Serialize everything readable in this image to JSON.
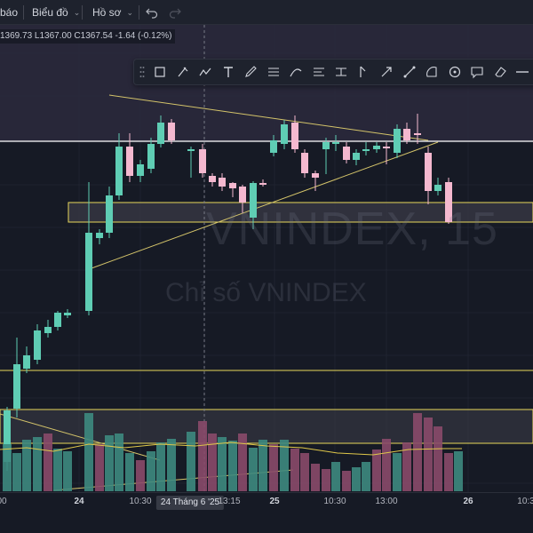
{
  "toolbar": {
    "items": [
      {
        "label": "báo",
        "chevron": false
      },
      {
        "label": "Biểu đồ",
        "chevron": true
      },
      {
        "label": "Hồ sơ",
        "chevron": true
      }
    ],
    "undo_icon": "undo-icon",
    "redo_icon": "redo-icon"
  },
  "legend": {
    "ohlc_text": "1369.73  L1367.00  C1367.54  -1.64 (-0.12%)"
  },
  "watermark": {
    "symbol": "VNINDEX, 15",
    "description": "Chỉ số VNINDEX"
  },
  "drawing_toolbar": {
    "tools": [
      "rectangle-icon",
      "brush-icon",
      "path-icon",
      "text-icon",
      "pencil-icon",
      "fib-retracement-icon",
      "curve-icon",
      "measure-icon",
      "measure-range-icon",
      "long-position-icon",
      "arrow-icon",
      "ruler-icon",
      "circle-icon",
      "arc-icon",
      "comment-icon",
      "eraser-icon",
      "line-style-icon"
    ]
  },
  "x_axis": {
    "labels": [
      "00",
      "24",
      "10:30",
      "13:15",
      "25",
      "10:30",
      "13:00",
      "26",
      "10:3"
    ],
    "crosshair_label": "24 Tháng 6 '25"
  },
  "colors": {
    "up": "#5fcdb4",
    "down": "#f4b8cf",
    "vol_up": "#3d8a80",
    "vol_down": "#8a4a6a",
    "hline": "#ffffff",
    "zone": "#e8d85a",
    "trend": "#d4c46a",
    "ma": "#e0c84a"
  }
}
